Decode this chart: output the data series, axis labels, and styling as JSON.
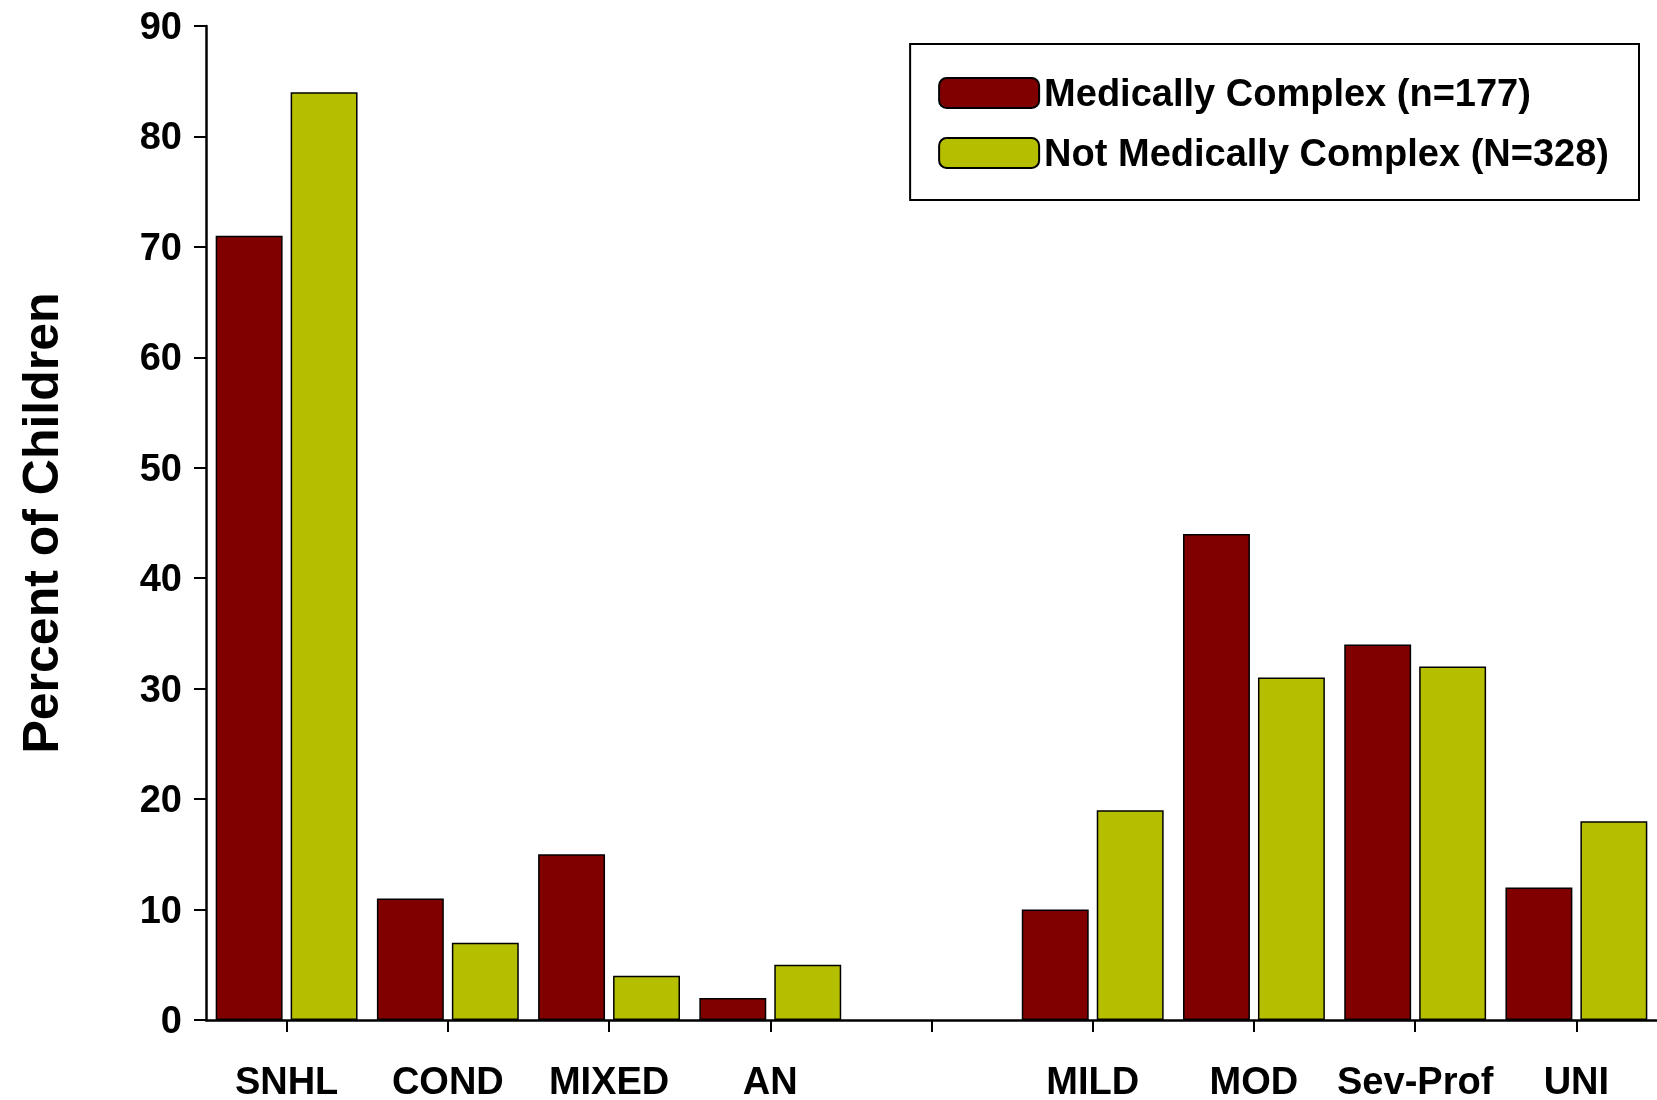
{
  "chart_data": {
    "type": "bar",
    "ylabel": "Percent of Children",
    "categories": [
      "SNHL",
      "COND",
      "MIXED",
      "AN",
      null,
      "MILD",
      "MOD",
      "Sev-Prof",
      "UNI"
    ],
    "series": [
      {
        "name": "Medically Complex (n=177)",
        "color": "#800000",
        "values": [
          71,
          11,
          15,
          2,
          null,
          10,
          44,
          34,
          12
        ]
      },
      {
        "name": "Not Medically Complex (N=328)",
        "color": "#b5bf00",
        "values": [
          84,
          7,
          4,
          5,
          null,
          19,
          31,
          32,
          18
        ]
      }
    ],
    "ylim": [
      0,
      90
    ],
    "yticks": [
      0,
      10,
      20,
      30,
      40,
      50,
      60,
      70,
      80,
      90
    ],
    "grid": false,
    "legend": "top right"
  }
}
